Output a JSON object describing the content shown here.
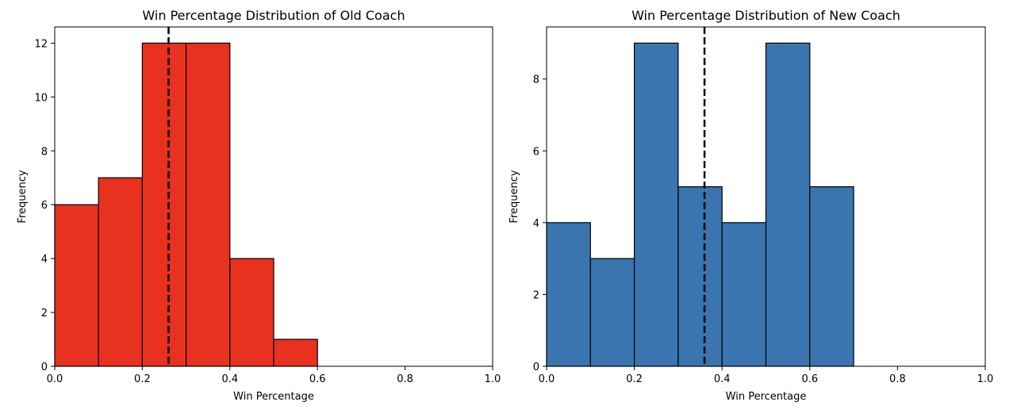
{
  "chart_data": [
    {
      "type": "bar",
      "subtype": "histogram",
      "title": "Win Percentage Distribution of Old Coach",
      "xlabel": "Win Percentage",
      "ylabel": "Frequency",
      "bins": [
        [
          0.0,
          0.1
        ],
        [
          0.1,
          0.2
        ],
        [
          0.2,
          0.3
        ],
        [
          0.3,
          0.4
        ],
        [
          0.4,
          0.5
        ],
        [
          0.5,
          0.6
        ],
        [
          0.6,
          0.7
        ],
        [
          0.7,
          0.8
        ],
        [
          0.8,
          0.9
        ],
        [
          0.9,
          1.0
        ]
      ],
      "values": [
        6,
        7,
        12,
        12,
        4,
        1,
        0,
        0,
        0,
        0
      ],
      "mean_line": 0.26,
      "xlim": [
        0.0,
        1.0
      ],
      "ylim": [
        0,
        12.6
      ],
      "xticks": [
        0.0,
        0.2,
        0.4,
        0.6,
        0.8,
        1.0
      ],
      "xtick_labels": [
        "0.0",
        "0.2",
        "0.4",
        "0.6",
        "0.8",
        "1.0"
      ],
      "yticks": [
        0,
        2,
        4,
        6,
        8,
        10,
        12
      ],
      "ytick_labels": [
        "0",
        "2",
        "4",
        "6",
        "8",
        "10",
        "12"
      ],
      "bar_color": "#e8311f",
      "edge_color": "#000000",
      "line_color": "#000000",
      "grid": false
    },
    {
      "type": "bar",
      "subtype": "histogram",
      "title": "Win Percentage Distribution of New Coach",
      "xlabel": "Win Percentage",
      "ylabel": "Frequency",
      "bins": [
        [
          0.0,
          0.1
        ],
        [
          0.1,
          0.2
        ],
        [
          0.2,
          0.3
        ],
        [
          0.3,
          0.4
        ],
        [
          0.4,
          0.5
        ],
        [
          0.5,
          0.6
        ],
        [
          0.6,
          0.7
        ],
        [
          0.7,
          0.8
        ],
        [
          0.8,
          0.9
        ],
        [
          0.9,
          1.0
        ]
      ],
      "values": [
        4,
        3,
        9,
        5,
        4,
        9,
        5,
        0,
        0,
        0
      ],
      "mean_line": 0.36,
      "xlim": [
        0.0,
        1.0
      ],
      "ylim": [
        0,
        9.45
      ],
      "xticks": [
        0.0,
        0.2,
        0.4,
        0.6,
        0.8,
        1.0
      ],
      "xtick_labels": [
        "0.0",
        "0.2",
        "0.4",
        "0.6",
        "0.8",
        "1.0"
      ],
      "yticks": [
        0,
        2,
        4,
        6,
        8
      ],
      "ytick_labels": [
        "0",
        "2",
        "4",
        "6",
        "8"
      ],
      "bar_color": "#3a75b0",
      "edge_color": "#000000",
      "line_color": "#000000",
      "grid": false
    }
  ]
}
